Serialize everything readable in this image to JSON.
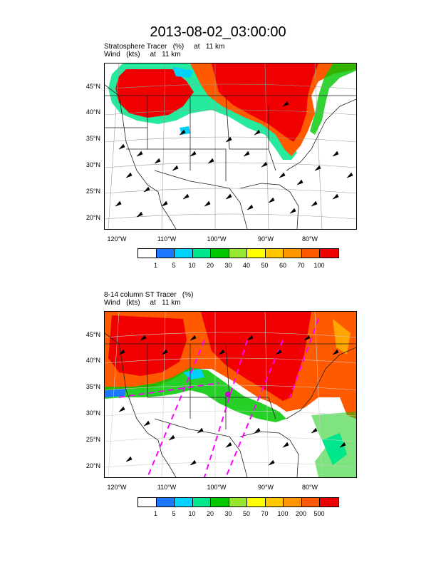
{
  "title": "2013-08-02_03:00:00",
  "panel1": {
    "subtitle1": "Stratosphere Tracer   (%)     at   11 km",
    "subtitle2": "Wind   (kts)     at   11 km",
    "colorbar_labels": [
      "1",
      "5",
      "10",
      "20",
      "30",
      "40",
      "50",
      "60",
      "70",
      "100"
    ]
  },
  "panel2": {
    "subtitle1": "8-14 column ST Tracer   (%)",
    "subtitle2": "Wind   (kts)     at   11 km",
    "colorbar_labels": [
      "1",
      "5",
      "10",
      "20",
      "30",
      "50",
      "70",
      "100",
      "200",
      "500"
    ]
  },
  "lat_labels": [
    "45°N",
    "40°N",
    "35°N",
    "30°N",
    "25°N",
    "20°N"
  ],
  "lon_labels": [
    "120°W",
    "110°W",
    "100°W",
    "90°W",
    "80°W"
  ],
  "colors": [
    "#ffffff",
    "#1e78ff",
    "#00d2ff",
    "#00e68c",
    "#00c800",
    "#96e632",
    "#ffff00",
    "#ffc800",
    "#ff9600",
    "#ff5a00",
    "#f00000"
  ],
  "map_colors": {
    "red": "#f00000",
    "orange": "#ff5a00",
    "magenta": "#ff00ff"
  }
}
